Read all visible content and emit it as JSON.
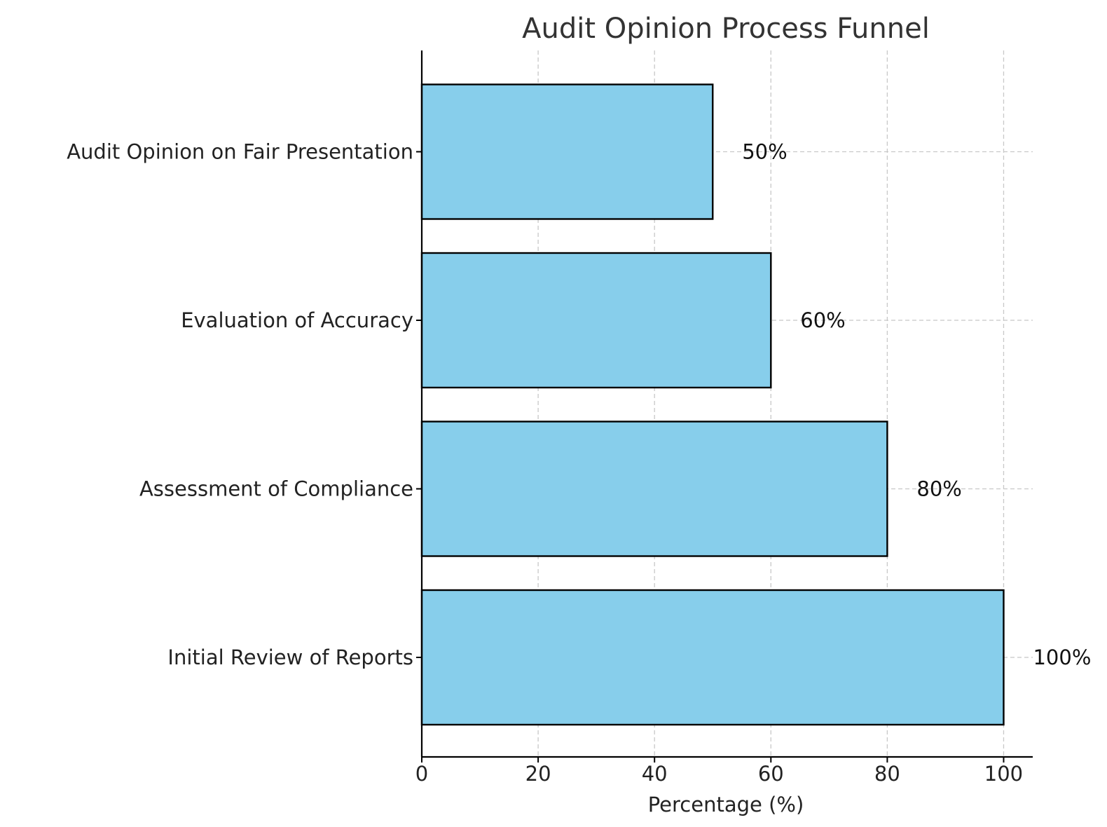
{
  "chart_data": {
    "type": "bar",
    "orientation": "horizontal",
    "title": "Audit Opinion Process Funnel",
    "xlabel": "Percentage (%)",
    "ylabel": "",
    "categories": [
      "Initial Review of Reports",
      "Assessment of Compliance",
      "Evaluation of Accuracy",
      "Audit Opinion on Fair Presentation"
    ],
    "values": [
      100,
      80,
      60,
      50
    ],
    "data_labels": [
      "100%",
      "80%",
      "60%",
      "50%"
    ],
    "xlim": [
      0,
      105
    ],
    "xticks": [
      0,
      20,
      40,
      60,
      80,
      100
    ],
    "xtick_labels": [
      "0",
      "20",
      "40",
      "60",
      "80",
      "100"
    ],
    "grid": true,
    "bar_color": "#87CEEB",
    "edge_color": "#000000"
  }
}
